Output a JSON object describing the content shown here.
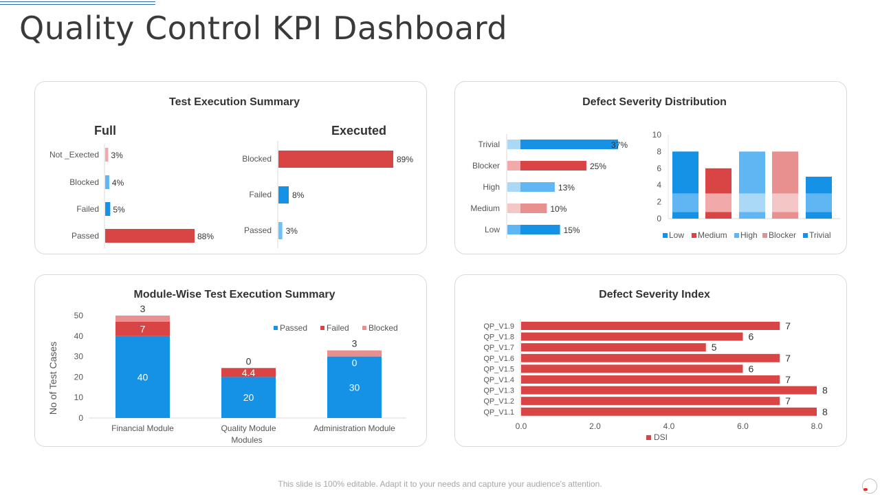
{
  "page": {
    "title": "Quality Control KPI Dashboard",
    "footer": "This slide is 100% editable. Adapt it to your needs and capture your audience's attention."
  },
  "colors": {
    "red": "#d94444",
    "pink": "#f2a9a9",
    "pink_light": "#f5c6c6",
    "rose": "#e89090",
    "blue": "#1592e6",
    "blue_mid": "#5fb6f2",
    "blue_light": "#aad8f7",
    "pale_blue": "#6ec1f5"
  },
  "chart_data": [
    {
      "id": "test-execution-summary",
      "type": "bar",
      "title": "Test Execution Summary",
      "charts": [
        {
          "label": "Full",
          "categories": [
            "Not _Exected",
            "Blocked",
            "Failed",
            "Passed"
          ],
          "values": [
            3,
            4,
            5,
            88
          ],
          "value_labels": [
            "3%",
            "4%",
            "5%",
            "88%"
          ]
        },
        {
          "label": "Executed",
          "categories": [
            "Blocked",
            "Failed",
            "Passed"
          ],
          "values": [
            89,
            8,
            3
          ],
          "value_labels": [
            "89%",
            "8%",
            "3%"
          ]
        }
      ]
    },
    {
      "id": "defect-severity-distribution",
      "type": "bar",
      "title": "Defect Severity Distribution",
      "horizontal": {
        "categories": [
          "Trivial",
          "Blocker",
          "High",
          "Medium",
          "Low"
        ],
        "values": [
          37,
          25,
          13,
          10,
          15
        ],
        "value_labels": [
          "37%",
          "25%",
          "13%",
          "10%",
          "15%"
        ]
      },
      "stacked": {
        "categories": [
          "Low",
          "Medium",
          "High",
          "Blocker",
          "Trivial"
        ],
        "ylim": [
          0,
          10
        ],
        "yticks": [
          "0",
          "2",
          "4",
          "6",
          "8",
          "10"
        ],
        "segments": [
          [
            0.8,
            2.2,
            5
          ],
          [
            0.8,
            2.2,
            3
          ],
          [
            0.8,
            2.2,
            5
          ],
          [
            0.8,
            2.2,
            5
          ],
          [
            0.8,
            2.2,
            2
          ]
        ],
        "legend": [
          "Low",
          "Medium",
          "High",
          "Blocker",
          "Trivial"
        ]
      }
    },
    {
      "id": "module-wise-test-execution-summary",
      "type": "bar",
      "title": "Module-Wise Test Execution Summary",
      "categories": [
        "Financial Module",
        "Quality Module",
        "Administration Module"
      ],
      "xlabel": "Modules",
      "ylabel": "No of Test Cases",
      "ylim": [
        0,
        50
      ],
      "yticks": [
        "0",
        "10",
        "20",
        "30",
        "40",
        "50"
      ],
      "series": [
        {
          "name": "Passed",
          "values": [
            40,
            20,
            30
          ],
          "labels": [
            "40",
            "20",
            "30"
          ]
        },
        {
          "name": "Failed",
          "values": [
            7,
            4.4,
            0
          ],
          "labels": [
            "7",
            "4.4",
            "0"
          ]
        },
        {
          "name": "Blocked",
          "values": [
            3,
            0,
            3
          ],
          "labels": [
            "3",
            "0",
            "3"
          ]
        }
      ]
    },
    {
      "id": "defect-severity-index",
      "type": "bar",
      "title": "Defect Severity Index",
      "categories": [
        "QP_V1.9",
        "QP_V1.8",
        "QP_V1.7",
        "QP_V1.6",
        "QP_V1.5",
        "QP_V1.4",
        "QP_V1.3",
        "QP_V1.2",
        "QP_V1.1"
      ],
      "values": [
        7,
        6,
        5,
        7,
        6,
        7,
        8,
        7,
        8
      ],
      "value_labels": [
        "7",
        "6",
        "5",
        "7",
        "6",
        "7",
        "8",
        "7",
        "8"
      ],
      "xlim": [
        0,
        8
      ],
      "xticks": [
        "0.0",
        "2.0",
        "4.0",
        "6.0",
        "8.0"
      ],
      "legend": [
        "DSI"
      ]
    }
  ]
}
